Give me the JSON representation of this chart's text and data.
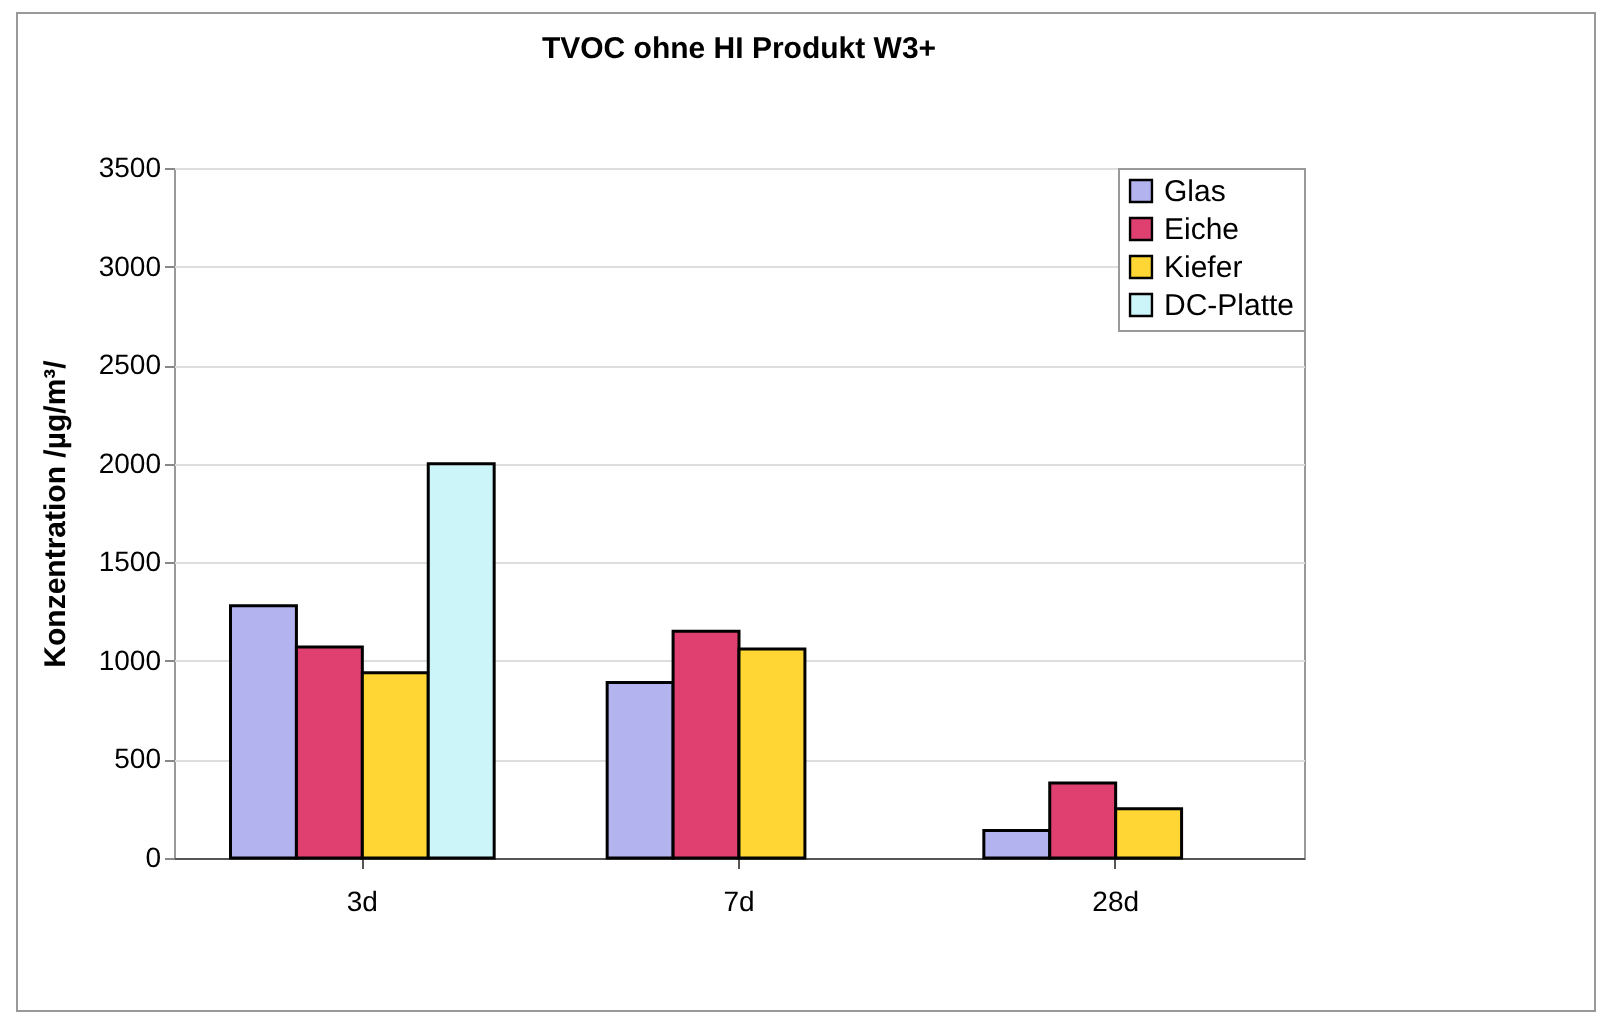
{
  "chart_data": {
    "type": "bar",
    "title": "TVOC ohne HI  Produkt W3+",
    "ylabel": "Konzentration /µg/m³/",
    "categories": [
      "3d",
      "7d",
      "28d"
    ],
    "series": [
      {
        "name": "Glas",
        "color": "#b3b3f0",
        "values": [
          1280,
          890,
          140
        ]
      },
      {
        "name": "Eiche",
        "color": "#e04070",
        "values": [
          1070,
          1150,
          380
        ]
      },
      {
        "name": "Kiefer",
        "color": "#ffd633",
        "values": [
          940,
          1060,
          250
        ]
      },
      {
        "name": "DC-Platte",
        "color": "#ccf5fa",
        "values": [
          2000,
          null,
          null
        ]
      }
    ],
    "ylim": [
      0,
      3500
    ],
    "yticks": [
      0,
      500,
      1000,
      1500,
      2000,
      2500,
      3000,
      3500
    ],
    "grid": "y",
    "legend": "top right"
  }
}
